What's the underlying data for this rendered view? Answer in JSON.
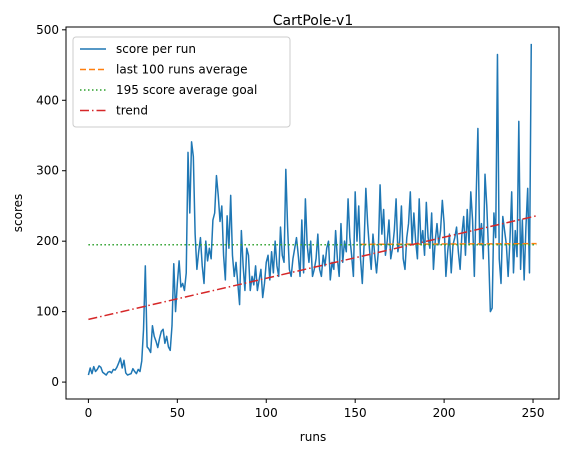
{
  "chart_data": {
    "type": "line",
    "title": "CartPole-v1",
    "xlabel": "runs",
    "ylabel": "scores",
    "xlim": [
      -12.6,
      264.6
    ],
    "ylim": [
      -24,
      504
    ],
    "xticks": [
      0,
      50,
      100,
      150,
      200,
      250
    ],
    "yticks": [
      0,
      100,
      200,
      300,
      400,
      500
    ],
    "grid": false,
    "legend_position": "top-left",
    "colors": {
      "score": "#1f77b4",
      "average": "#ff7f0e",
      "goal": "#2ca02c",
      "trend": "#d62728"
    },
    "series": [
      {
        "name": "score per run",
        "style": "solid",
        "color": "#1f77b4",
        "y": [
          10,
          20,
          12,
          22,
          15,
          18,
          23,
          21,
          14,
          12,
          10,
          14,
          15,
          13,
          18,
          17,
          21,
          27,
          34,
          20,
          31,
          13,
          10,
          11,
          12,
          19,
          15,
          12,
          18,
          15,
          30,
          75,
          165,
          50,
          47,
          42,
          80,
          65,
          58,
          49,
          62,
          72,
          75,
          55,
          65,
          50,
          45,
          80,
          168,
          100,
          140,
          172,
          135,
          140,
          130,
          155,
          326,
          240,
          341,
          320,
          210,
          160,
          185,
          205,
          165,
          140,
          200,
          172,
          190,
          175,
          230,
          240,
          293,
          265,
          228,
          250,
          180,
          145,
          236,
          190,
          265,
          180,
          150,
          170,
          140,
          110,
          215,
          165,
          130,
          190,
          180,
          130,
          150,
          138,
          165,
          130,
          145,
          160,
          120,
          140,
          170,
          180,
          145,
          185,
          155,
          200,
          165,
          150,
          220,
          180,
          170,
          302,
          220,
          160,
          150,
          175,
          190,
          205,
          180,
          150,
          230,
          155,
          260,
          195,
          170,
          200,
          150,
          160,
          175,
          210,
          160,
          150,
          180,
          165,
          190,
          200,
          145,
          170,
          160,
          215,
          175,
          150,
          225,
          170,
          200,
          185,
          260,
          205,
          180,
          150,
          270,
          200,
          250,
          175,
          140,
          195,
          275,
          225,
          190,
          160,
          210,
          180,
          155,
          185,
          280,
          210,
          245,
          180,
          200,
          230,
          175,
          190,
          215,
          260,
          185,
          200,
          250,
          175,
          160,
          205,
          225,
          270,
          195,
          240,
          200,
          175,
          260,
          195,
          215,
          180,
          255,
          205,
          190,
          240,
          160,
          200,
          225,
          195,
          215,
          258,
          225,
          150,
          185,
          210,
          155,
          195,
          205,
          220,
          185,
          160,
          210,
          235,
          180,
          245,
          195,
          270,
          230,
          150,
          260,
          360,
          195,
          225,
          175,
          295,
          250,
          185,
          100,
          105,
          240,
          205,
          465,
          175,
          140,
          235,
          215,
          195,
          150,
          200,
          270,
          155,
          215,
          178,
          370,
          160,
          230,
          145,
          220,
          275,
          155,
          480
        ]
      },
      {
        "name": "last 100 runs average",
        "style": "dashed",
        "color": "#ff7f0e",
        "x": [
          153,
          252
        ],
        "y": [
          195.5,
          196.5
        ]
      },
      {
        "name": "195 score average goal",
        "style": "dotted",
        "color": "#2ca02c",
        "x": [
          0,
          252
        ],
        "y": [
          195,
          195
        ]
      },
      {
        "name": "trend",
        "style": "dashdot",
        "color": "#d62728",
        "x": [
          0,
          252
        ],
        "y": [
          89,
          236
        ]
      }
    ]
  }
}
